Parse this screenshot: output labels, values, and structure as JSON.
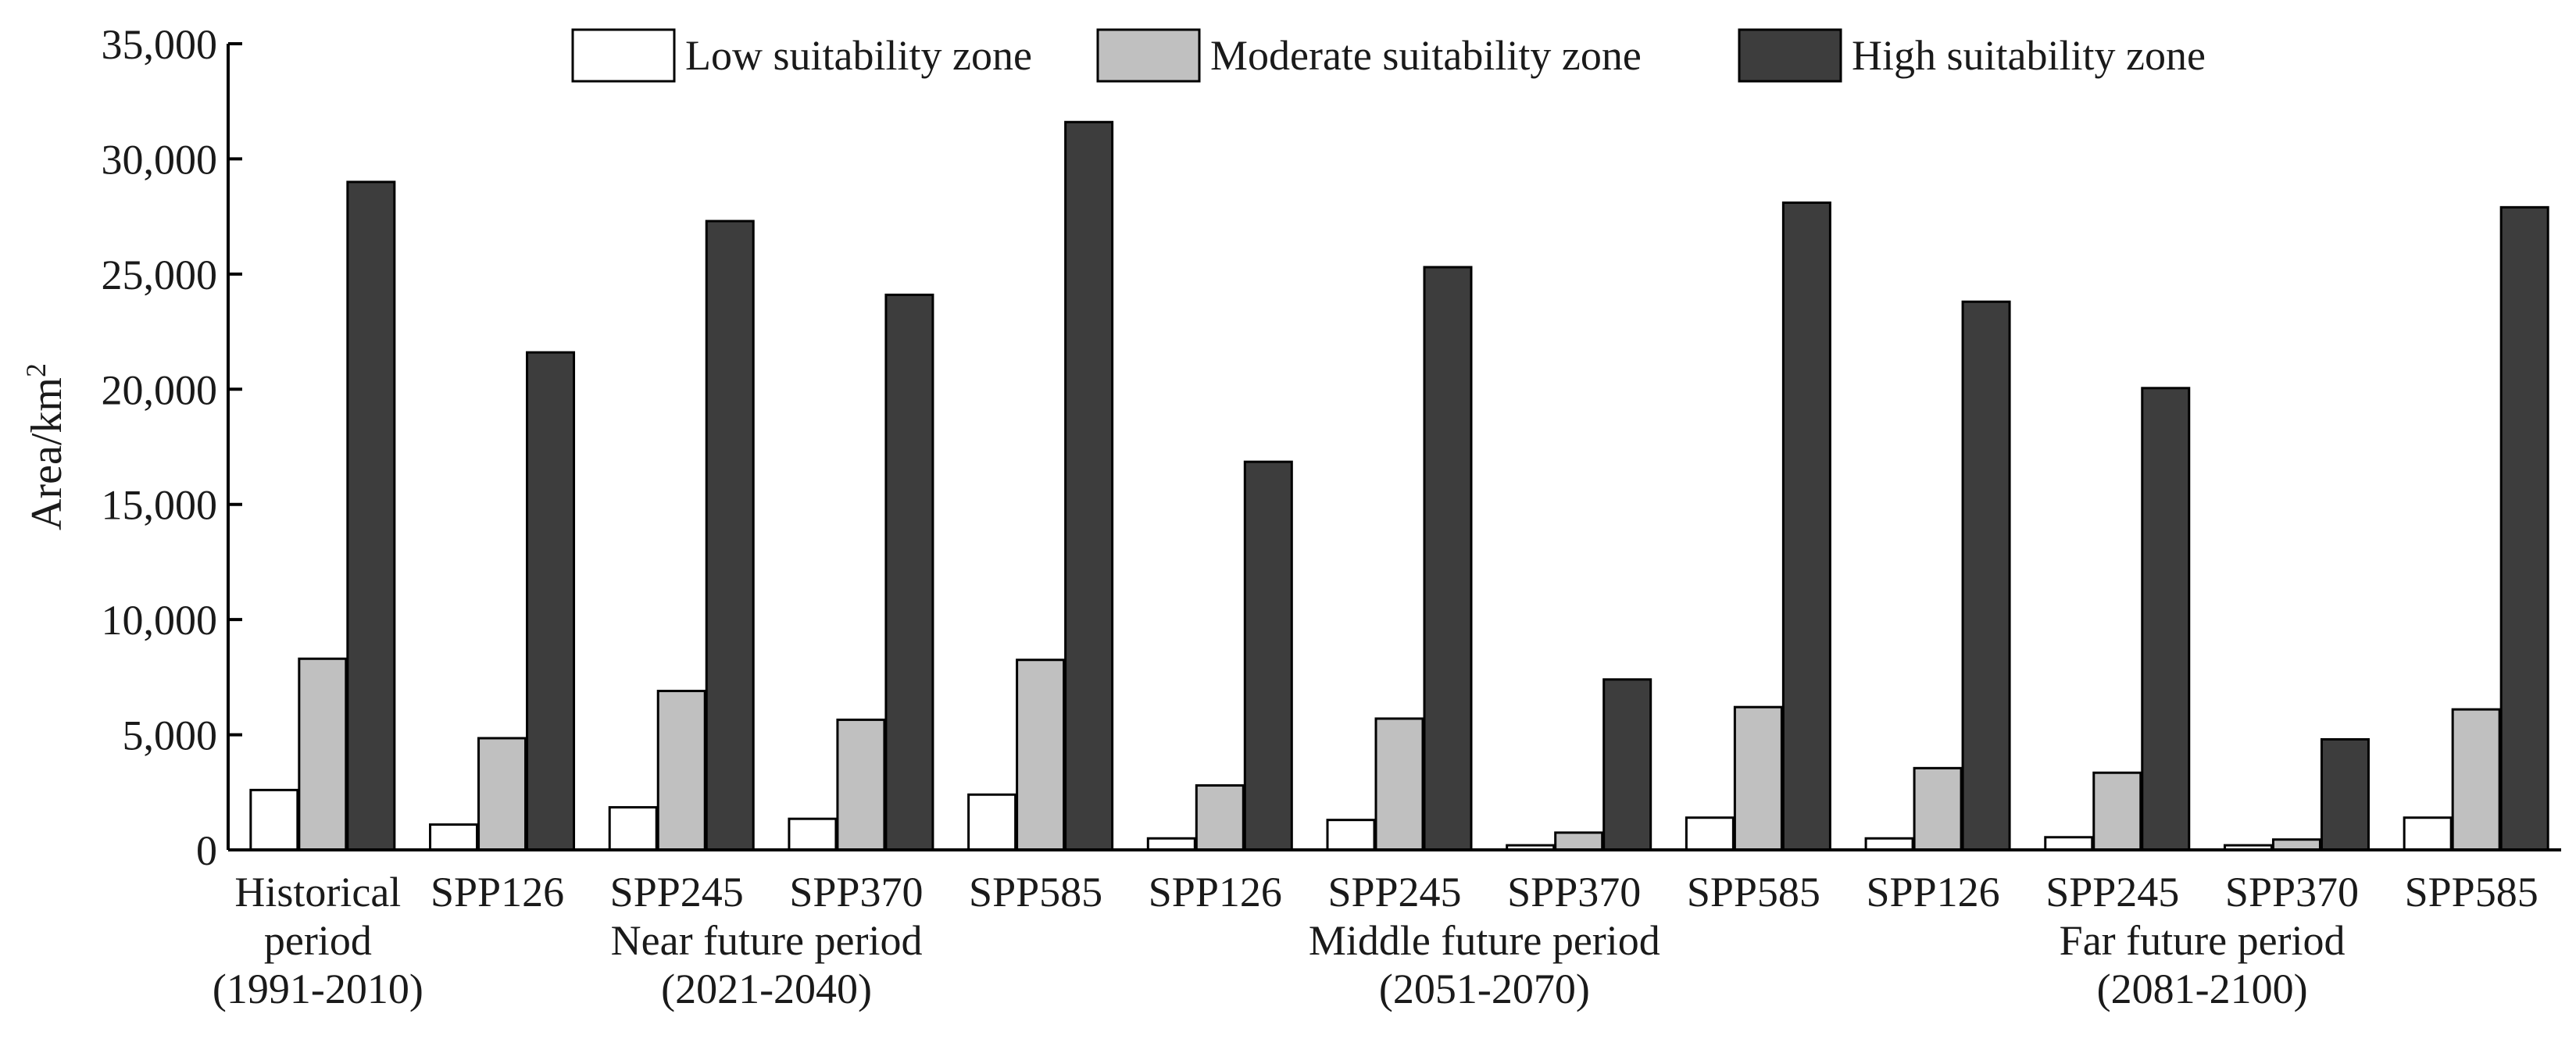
{
  "chart_data": {
    "type": "bar",
    "title": "",
    "xlabel": "",
    "ylabel": "Area/km",
    "ylabel_superscript": "2",
    "ylim": [
      0,
      35000
    ],
    "yticks": [
      0,
      5000,
      10000,
      15000,
      20000,
      25000,
      30000,
      35000
    ],
    "ytick_labels": [
      "0",
      "5,000",
      "10,000",
      "15,000",
      "20,000",
      "25,000",
      "30,000",
      "35,000"
    ],
    "legend_position": "top",
    "categories": [
      "Historical period (1991-2010)",
      "SPP126",
      "SPP245",
      "SPP370",
      "SPP585",
      "SPP126",
      "SPP245",
      "SPP370",
      "SPP585",
      "SPP126",
      "SPP245",
      "SPP370",
      "SPP585"
    ],
    "category_tick_labels": [
      [
        "Historical",
        "period",
        "(1991-2010)"
      ],
      [
        "SPP126"
      ],
      [
        "SPP245"
      ],
      [
        "SPP370"
      ],
      [
        "SPP585"
      ],
      [
        "SPP126"
      ],
      [
        "SPP245"
      ],
      [
        "SPP370"
      ],
      [
        "SPP585"
      ],
      [
        "SPP126"
      ],
      [
        "SPP245"
      ],
      [
        "SPP370"
      ],
      [
        "SPP585"
      ]
    ],
    "period_groups": [
      {
        "lines": [
          "Near future period",
          "(2021-2040)"
        ],
        "first_category": 1,
        "last_category": 4
      },
      {
        "lines": [
          "Middle future period",
          "(2051-2070)"
        ],
        "first_category": 5,
        "last_category": 8
      },
      {
        "lines": [
          "Far future period",
          "(2081-2100)"
        ],
        "first_category": 9,
        "last_category": 12
      }
    ],
    "series": [
      {
        "name": "Low suitability zone",
        "color": "#ffffff",
        "values": [
          2600,
          1100,
          1850,
          1350,
          2400,
          500,
          1300,
          200,
          1400,
          500,
          550,
          200,
          1400
        ]
      },
      {
        "name": "Moderate suitability zone",
        "color": "#c0c0c0",
        "values": [
          8300,
          4850,
          6900,
          5650,
          8250,
          2800,
          5700,
          750,
          6200,
          3550,
          3350,
          450,
          6100
        ]
      },
      {
        "name": "High suitability zone",
        "color": "#3d3d3d",
        "values": [
          29000,
          21600,
          27300,
          24100,
          31600,
          16850,
          25300,
          7400,
          28100,
          23800,
          20050,
          4800,
          27900
        ]
      }
    ]
  }
}
